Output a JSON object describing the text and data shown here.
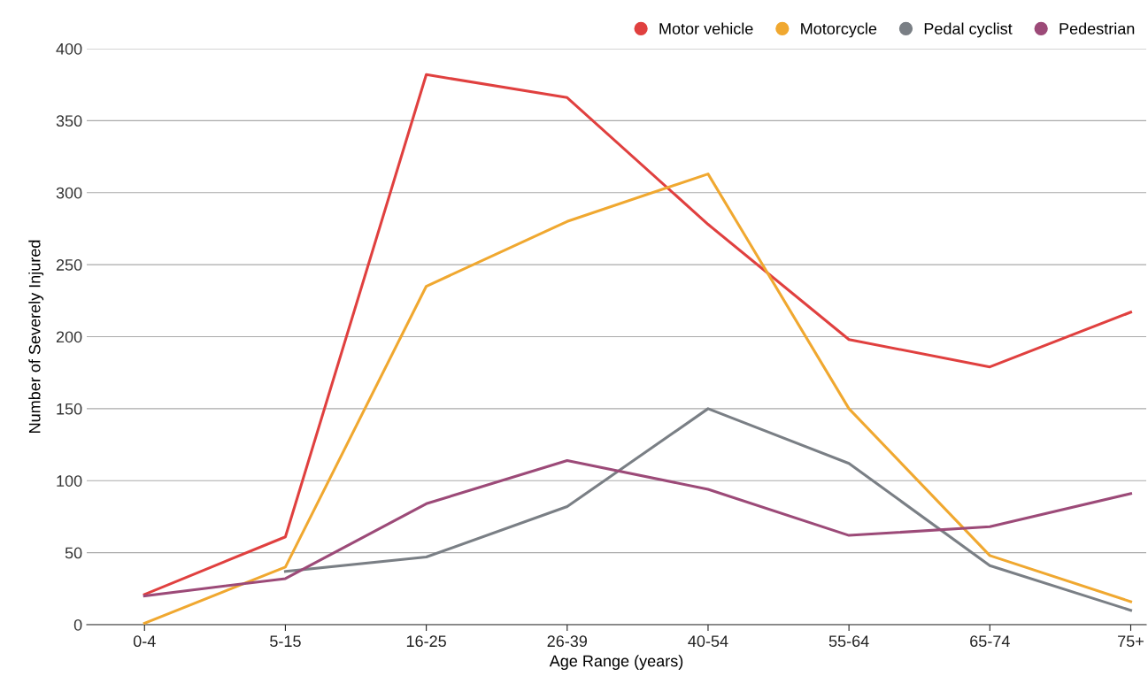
{
  "chart_data": {
    "type": "line",
    "xlabel": "Age Range (years)",
    "ylabel": "Number of Severely Injured",
    "categories": [
      "0-4",
      "5-15",
      "16-25",
      "26-39",
      "40-54",
      "55-64",
      "65-74",
      "75+"
    ],
    "series": [
      {
        "name": "Motor vehicle",
        "color": "#e0403f",
        "values": [
          21,
          61,
          382,
          366,
          278,
          198,
          179,
          217
        ]
      },
      {
        "name": "Motorcycle",
        "color": "#f0a830",
        "values": [
          1,
          40,
          235,
          280,
          313,
          150,
          48,
          16
        ]
      },
      {
        "name": "Pedal cyclist",
        "color": "#7a7f85",
        "values": [
          null,
          37,
          47,
          82,
          150,
          112,
          41,
          10
        ]
      },
      {
        "name": "Pedestrian",
        "color": "#9c4a78",
        "values": [
          20,
          32,
          84,
          114,
          94,
          62,
          68,
          91
        ]
      }
    ],
    "ylim": [
      0,
      400
    ],
    "yticks": [
      0,
      50,
      100,
      150,
      200,
      250,
      300,
      350,
      400
    ],
    "grid": "y",
    "legend": "top right"
  }
}
